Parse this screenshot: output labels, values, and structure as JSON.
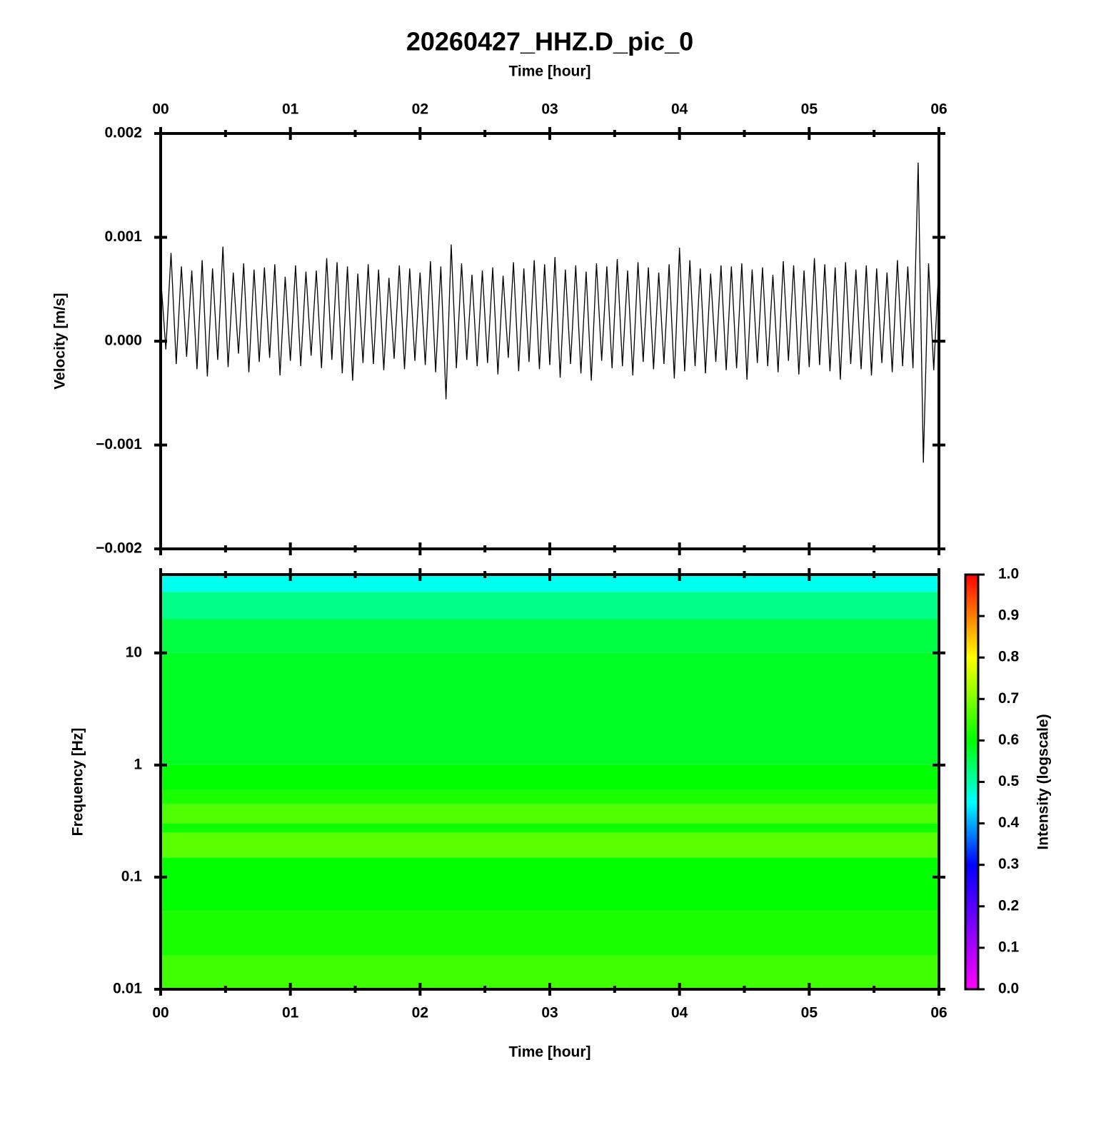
{
  "chart_data": [
    {
      "type": "line",
      "title": "20260427_HHZ.D_pic_0",
      "x_label": "Time [hour]",
      "xaxis_position": "top",
      "y_label": "Velocity [m/s]",
      "color": "#000000",
      "xlim": [
        0,
        6
      ],
      "xticks": [
        {
          "value": 0,
          "label": "00"
        },
        {
          "value": 1,
          "label": "01"
        },
        {
          "value": 2,
          "label": "02"
        },
        {
          "value": 3,
          "label": "03"
        },
        {
          "value": 4,
          "label": "04"
        },
        {
          "value": 5,
          "label": "05"
        },
        {
          "value": 6,
          "label": "06"
        }
      ],
      "xminorticks": [
        0.5,
        1.5,
        2.5,
        3.5,
        4.5,
        5.5
      ],
      "ylim": [
        -0.002,
        0.002
      ],
      "yticks": [
        {
          "value": -0.002,
          "label": "−0.002"
        },
        {
          "value": -0.001,
          "label": "−0.001"
        },
        {
          "value": 0,
          "label": "0.000"
        },
        0.001,
        0.002
      ],
      "x": [
        0,
        0.04,
        0.08,
        0.12,
        0.16,
        0.2,
        0.24,
        0.28,
        0.32,
        0.36,
        0.4,
        0.44,
        0.48,
        0.52,
        0.56,
        0.6,
        0.64,
        0.68,
        0.72,
        0.76,
        0.8,
        0.84,
        0.88,
        0.92,
        0.96,
        1,
        1.04,
        1.08,
        1.12,
        1.16,
        1.2,
        1.24,
        1.28,
        1.32,
        1.36,
        1.4,
        1.44,
        1.48,
        1.52,
        1.56,
        1.6,
        1.64,
        1.68,
        1.72,
        1.76,
        1.8,
        1.84,
        1.88,
        1.92,
        1.96,
        2,
        2.04,
        2.08,
        2.12,
        2.16,
        2.2,
        2.24,
        2.28,
        2.32,
        2.36,
        2.4,
        2.44,
        2.48,
        2.52,
        2.56,
        2.6,
        2.64,
        2.68,
        2.72,
        2.76,
        2.8,
        2.84,
        2.88,
        2.92,
        2.96,
        3,
        3.04,
        3.08,
        3.12,
        3.16,
        3.2,
        3.24,
        3.28,
        3.32,
        3.36,
        3.4,
        3.44,
        3.48,
        3.52,
        3.56,
        3.6,
        3.64,
        3.68,
        3.72,
        3.76,
        3.8,
        3.84,
        3.88,
        3.92,
        3.96,
        4,
        4.04,
        4.08,
        4.12,
        4.16,
        4.2,
        4.24,
        4.28,
        4.32,
        4.36,
        4.4,
        4.44,
        4.48,
        4.52,
        4.56,
        4.6,
        4.64,
        4.68,
        4.72,
        4.76,
        4.8,
        4.84,
        4.88,
        4.92,
        4.96,
        5,
        5.04,
        5.08,
        5.12,
        5.16,
        5.2,
        5.24,
        5.28,
        5.32,
        5.36,
        5.4,
        5.44,
        5.48,
        5.52,
        5.56,
        5.6,
        5.64,
        5.68,
        5.72,
        5.76,
        5.8,
        5.84,
        5.88,
        5.92,
        5.96,
        6
      ],
      "values": [
        0.00063,
        -8e-05,
        0.00085,
        -0.00022,
        0.00072,
        -0.00015,
        0.00068,
        -0.00027,
        0.00078,
        -0.00034,
        0.0007,
        -0.00018,
        0.00091,
        -0.00025,
        0.00066,
        -0.00012,
        0.00075,
        -0.0003,
        0.00069,
        -0.0002,
        0.00071,
        -0.00016,
        0.00074,
        -0.00033,
        0.00062,
        -0.00019,
        0.00073,
        -0.00024,
        0.00067,
        -0.00014,
        0.00068,
        -0.00026,
        0.0008,
        -0.00018,
        0.00076,
        -0.00031,
        0.00072,
        -0.00038,
        0.00065,
        -0.00021,
        0.00074,
        -0.00022,
        0.00069,
        -0.00028,
        0.00061,
        -0.00017,
        0.00073,
        -0.00027,
        0.0007,
        -0.00019,
        0.00066,
        -0.00023,
        0.00077,
        -0.0003,
        0.00072,
        -0.00056,
        0.00093,
        -0.00026,
        0.00075,
        -0.00018,
        0.00064,
        -0.00024,
        0.00068,
        -0.00021,
        0.00071,
        -0.00032,
        0.00063,
        -0.00016,
        0.00076,
        -0.00029,
        0.0007,
        -0.0002,
        0.00078,
        -0.00027,
        0.00074,
        -0.00023,
        0.00081,
        -0.00035,
        0.00069,
        -0.00022,
        0.00073,
        -0.00031,
        0.00067,
        -0.00038,
        0.00075,
        -0.00019,
        0.00072,
        -0.00026,
        0.00079,
        -0.00024,
        0.00068,
        -0.00033,
        0.00076,
        -0.0002,
        0.00071,
        -0.00027,
        0.00066,
        -0.00022,
        0.00074,
        -0.00036,
        0.0009,
        -0.00029,
        0.00078,
        -0.00024,
        0.0007,
        -0.00031,
        0.00065,
        -0.0002,
        0.00073,
        -0.00028,
        0.00072,
        -0.00026,
        0.00075,
        -0.00037,
        0.00069,
        -0.00021,
        0.00071,
        -0.00024,
        0.00064,
        -0.0003,
        0.00077,
        -0.00019,
        0.00073,
        -0.00032,
        0.00068,
        -0.00025,
        0.0008,
        -0.00023,
        0.00074,
        -0.00029,
        0.00071,
        -0.00037,
        0.00076,
        -0.00022,
        0.00069,
        -0.00027,
        0.00073,
        -0.00033,
        0.0007,
        -0.00021,
        0.00066,
        -0.0003,
        0.00078,
        -0.00024,
        0.00072,
        -0.00026,
        0.00172,
        -0.00117,
        0.00075,
        -0.00028,
        0.00074
      ]
    },
    {
      "type": "heatmap",
      "x_label": "Time [hour]",
      "xaxis_position": "bottom",
      "y_label": "Frequency [Hz]",
      "yscale": "log",
      "xlim": [
        0,
        6
      ],
      "xticks": [
        {
          "value": 0,
          "label": "00"
        },
        {
          "value": 1,
          "label": "01"
        },
        {
          "value": 2,
          "label": "02"
        },
        {
          "value": 3,
          "label": "03"
        },
        {
          "value": 4,
          "label": "04"
        },
        {
          "value": 5,
          "label": "05"
        },
        {
          "value": 6,
          "label": "06"
        }
      ],
      "xminorticks": [
        0.5,
        1.5,
        2.5,
        3.5,
        4.5,
        5.5
      ],
      "ylim": [
        0.01,
        50
      ],
      "yticks": [
        0.01,
        0.1,
        1,
        10
      ],
      "y_bins": [
        0.01,
        0.02,
        0.05,
        0.15,
        0.25,
        0.3,
        0.45,
        0.6,
        1,
        10,
        20,
        35,
        50
      ],
      "values": [
        0.65,
        0.62,
        0.6,
        0.67,
        0.61,
        0.66,
        0.62,
        0.6,
        0.58,
        0.56,
        0.52,
        0.46
      ],
      "colorbar": {
        "label": "Intensity (logscale)",
        "lim": [
          0,
          1
        ],
        "ticks": [
          {
            "value": 0,
            "label": "0.0"
          },
          0.1,
          0.2,
          0.3,
          0.4,
          0.5,
          0.6,
          0.7,
          0.8,
          0.9,
          {
            "value": 1,
            "label": "1.0"
          }
        ],
        "colors": [
          [
            0,
            "#ff00ff"
          ],
          [
            0.3,
            "#0000ff"
          ],
          [
            0.45,
            "#00ffff"
          ],
          [
            0.6,
            "#00ff00"
          ],
          [
            0.8,
            "#ffff00"
          ],
          [
            1,
            "#ff0000"
          ]
        ]
      }
    }
  ]
}
